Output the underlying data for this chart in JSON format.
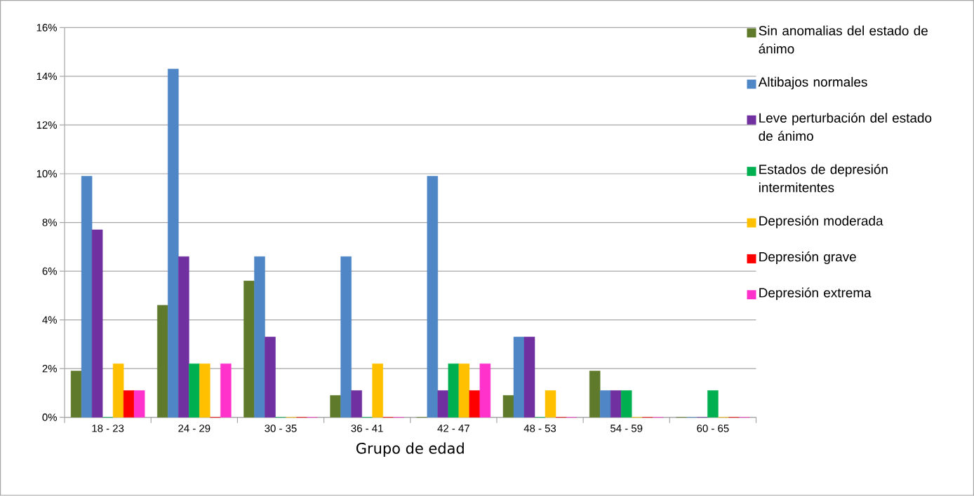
{
  "chart_data": {
    "type": "bar",
    "xlabel": "Grupo de edad",
    "categories": [
      "18 - 23",
      "24 - 29",
      "30 - 35",
      "36 - 41",
      "42 - 47",
      "48 - 53",
      "54 - 59",
      "60 - 65"
    ],
    "series": [
      {
        "name": "Sin anomalias del estado de ánimo",
        "color": "#5f7a2a",
        "values": [
          1.9,
          4.6,
          5.6,
          0.9,
          0,
          0.9,
          1.9,
          0
        ]
      },
      {
        "name": "Altibajos normales",
        "color": "#4f86c6",
        "values": [
          9.9,
          14.3,
          6.6,
          6.6,
          9.9,
          3.3,
          1.1,
          0
        ]
      },
      {
        "name": "Leve perturbación del estado de ánimo",
        "color": "#7030a0",
        "values": [
          7.7,
          6.6,
          3.3,
          1.1,
          1.1,
          3.3,
          1.1,
          0
        ]
      },
      {
        "name": "Estados de depresión intermitentes",
        "color": "#00b050",
        "values": [
          0,
          2.2,
          0,
          0,
          2.2,
          0,
          1.1,
          1.1
        ]
      },
      {
        "name": "Depresión moderada",
        "color": "#ffc000",
        "values": [
          2.2,
          2.2,
          0,
          2.2,
          2.2,
          1.1,
          0,
          0
        ]
      },
      {
        "name": "Depresión grave",
        "color": "#ff0000",
        "values": [
          1.1,
          0,
          0,
          0,
          1.1,
          0,
          0,
          0
        ]
      },
      {
        "name": "Depresión extrema",
        "color": "#ff33cc",
        "values": [
          1.1,
          2.2,
          0,
          0,
          2.2,
          0,
          0,
          0
        ]
      }
    ],
    "ylim": [
      0,
      16
    ],
    "yticks": [
      {
        "value": 0,
        "label": "0%"
      },
      {
        "value": 2,
        "label": "2%"
      },
      {
        "value": 4,
        "label": "4%"
      },
      {
        "value": 6,
        "label": "6%"
      },
      {
        "value": 8,
        "label": "8%"
      },
      {
        "value": 10,
        "label": "10%"
      },
      {
        "value": 12,
        "label": "12%"
      },
      {
        "value": 14,
        "label": "14%"
      },
      {
        "value": 16,
        "label": "16%"
      }
    ],
    "grid": "y",
    "legend": "right"
  }
}
